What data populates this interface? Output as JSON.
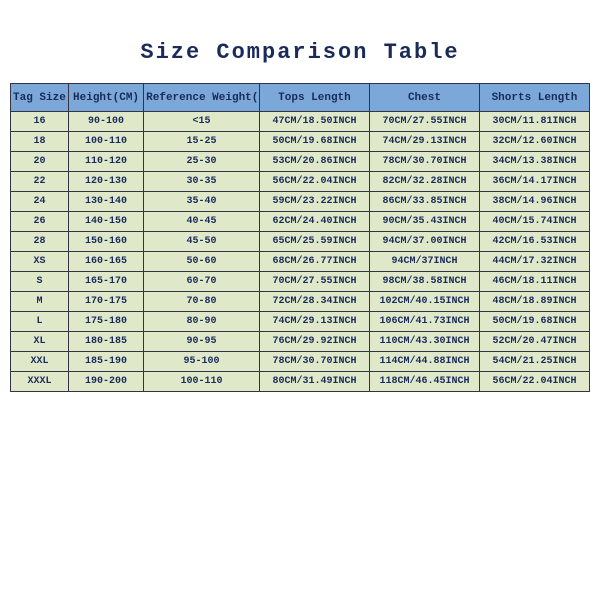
{
  "title": "Size Comparison Table",
  "title_color": "#1a2a5a",
  "title_fontsize": 22,
  "header_bg": "#7ba8d8",
  "cell_bg": "#dfe8c9",
  "border_color": "#333344",
  "text_color": "#1a2a5a",
  "font_family": "Courier New",
  "columns": [
    {
      "label": "Tag Size",
      "width": "10%"
    },
    {
      "label": "Height(CM)",
      "width": "13%"
    },
    {
      "label": "Reference Weight(KG)",
      "width": "20%"
    },
    {
      "label": "Tops Length",
      "width": "19%"
    },
    {
      "label": "Chest",
      "width": "19%"
    },
    {
      "label": "Shorts Length",
      "width": "19%"
    }
  ],
  "rows": [
    [
      "16",
      "90-100",
      "<15",
      "47CM/18.50INCH",
      "70CM/27.55INCH",
      "30CM/11.81INCH"
    ],
    [
      "18",
      "100-110",
      "15-25",
      "50CM/19.68INCH",
      "74CM/29.13INCH",
      "32CM/12.60INCH"
    ],
    [
      "20",
      "110-120",
      "25-30",
      "53CM/20.86INCH",
      "78CM/30.70INCH",
      "34CM/13.38INCH"
    ],
    [
      "22",
      "120-130",
      "30-35",
      "56CM/22.04INCH",
      "82CM/32.28INCH",
      "36CM/14.17INCH"
    ],
    [
      "24",
      "130-140",
      "35-40",
      "59CM/23.22INCH",
      "86CM/33.85INCH",
      "38CM/14.96INCH"
    ],
    [
      "26",
      "140-150",
      "40-45",
      "62CM/24.40INCH",
      "90CM/35.43INCH",
      "40CM/15.74INCH"
    ],
    [
      "28",
      "150-160",
      "45-50",
      "65CM/25.59INCH",
      "94CM/37.00INCH",
      "42CM/16.53INCH"
    ],
    [
      "XS",
      "160-165",
      "50-60",
      "68CM/26.77INCH",
      "94CM/37INCH",
      "44CM/17.32INCH"
    ],
    [
      "S",
      "165-170",
      "60-70",
      "70CM/27.55INCH",
      "98CM/38.58INCH",
      "46CM/18.11INCH"
    ],
    [
      "M",
      "170-175",
      "70-80",
      "72CM/28.34INCH",
      "102CM/40.15INCH",
      "48CM/18.89INCH"
    ],
    [
      "L",
      "175-180",
      "80-90",
      "74CM/29.13INCH",
      "106CM/41.73INCH",
      "50CM/19.68INCH"
    ],
    [
      "XL",
      "180-185",
      "90-95",
      "76CM/29.92INCH",
      "110CM/43.30INCH",
      "52CM/20.47INCH"
    ],
    [
      "XXL",
      "185-190",
      "95-100",
      "78CM/30.70INCH",
      "114CM/44.88INCH",
      "54CM/21.25INCH"
    ],
    [
      "XXXL",
      "190-200",
      "100-110",
      "80CM/31.49INCH",
      "118CM/46.45INCH",
      "56CM/22.04INCH"
    ]
  ]
}
